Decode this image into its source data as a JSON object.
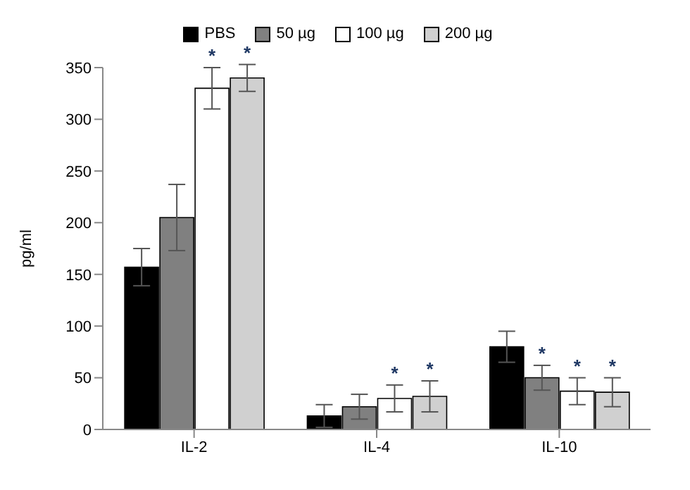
{
  "chart_data": {
    "type": "bar",
    "ylabel": "pg/ml",
    "categories": [
      "IL-2",
      "IL-4",
      "IL-10"
    ],
    "series": [
      {
        "name": "PBS",
        "color": "#000000",
        "values": [
          157,
          13,
          80
        ],
        "errors": [
          18,
          11,
          15
        ]
      },
      {
        "name": "50 µg",
        "color": "#808080",
        "values": [
          205,
          22,
          50
        ],
        "errors": [
          32,
          12,
          12
        ],
        "value_labels": [
          null,
          null,
          "*"
        ]
      },
      {
        "name": "100 µg",
        "color": "#ffffff",
        "values": [
          330,
          30,
          37
        ],
        "errors": [
          20,
          13,
          13
        ],
        "value_labels": [
          "*",
          "*",
          "*"
        ]
      },
      {
        "name": "200 µg",
        "color": "#d0d0d0",
        "values": [
          340,
          32,
          36
        ],
        "errors": [
          13,
          15,
          14
        ],
        "value_labels": [
          "*",
          "*",
          "*"
        ]
      }
    ],
    "ylim": [
      0,
      350
    ],
    "yticks": [
      0,
      50,
      100,
      150,
      200,
      250,
      300,
      350
    ],
    "grid": false,
    "legend": "top"
  }
}
